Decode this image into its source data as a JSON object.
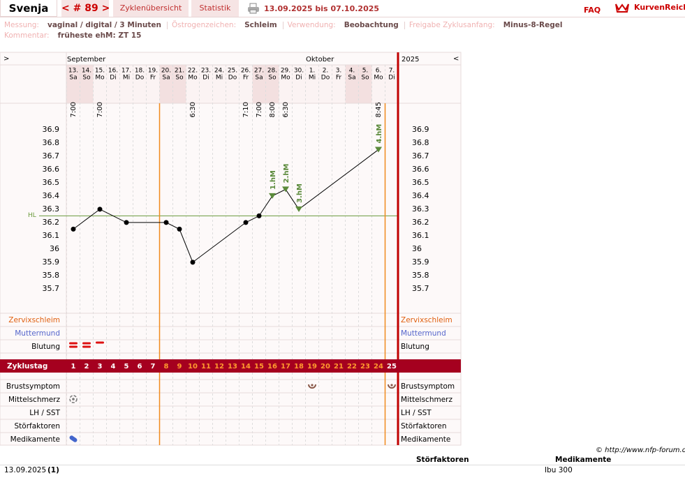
{
  "header": {
    "name": "Svenja",
    "cycle": "< # 89 >",
    "tabs": [
      "Zyklenübersicht",
      "Statistik"
    ],
    "period": "13.09.2025 bis 07.10.2025",
    "faq": "FAQ",
    "logo": "KurvenReich"
  },
  "info": [
    {
      "label": "Messung:",
      "value": "vaginal / digital / 3 Minuten"
    },
    {
      "label": "Östrogenzeichen:",
      "value": "Schleim"
    },
    {
      "label": "Verwendung:",
      "value": "Beobachtung"
    },
    {
      "label": "Freigabe Zyklusanfang:",
      "value": "Minus-8-Regel"
    }
  ],
  "comment": {
    "label": "Kommentar:",
    "value": "früheste ehM: ZT 15"
  },
  "chart_data": {
    "type": "line",
    "nav_left": ">",
    "nav_right": "<",
    "months": [
      "September",
      "Oktober"
    ],
    "year": "2025",
    "dates": [
      "13.",
      "14.",
      "15.",
      "16.",
      "17.",
      "18.",
      "19.",
      "20.",
      "21.",
      "22.",
      "23.",
      "24.",
      "25.",
      "26.",
      "27.",
      "28.",
      "29.",
      "30.",
      "1.",
      "2.",
      "3.",
      "4.",
      "5.",
      "6.",
      "7."
    ],
    "weekdays": [
      "Sa",
      "So",
      "Mo",
      "Di",
      "Mi",
      "Do",
      "Fr",
      "Sa",
      "So",
      "Mo",
      "Di",
      "Mi",
      "Do",
      "Fr",
      "Sa",
      "So",
      "Mo",
      "Di",
      "Mi",
      "Do",
      "Fr",
      "Sa",
      "So",
      "Mo",
      "Di"
    ],
    "times": [
      "7:00",
      null,
      "7:00",
      null,
      null,
      null,
      null,
      null,
      null,
      "6:30",
      null,
      null,
      null,
      "7:10",
      "7:00",
      "8:00",
      "6:30",
      null,
      null,
      null,
      null,
      null,
      null,
      "8:45",
      null
    ],
    "cycle_days": [
      1,
      2,
      3,
      4,
      5,
      6,
      7,
      8,
      9,
      10,
      11,
      12,
      13,
      14,
      15,
      16,
      17,
      18,
      19,
      20,
      21,
      22,
      23,
      24,
      25
    ],
    "shaded_days": [
      1,
      2,
      8,
      9,
      15,
      16,
      22,
      23
    ],
    "x": [
      1,
      3,
      5,
      8,
      9,
      10,
      14,
      15,
      16,
      17,
      18,
      24
    ],
    "values": [
      36.15,
      36.3,
      36.2,
      36.2,
      36.15,
      35.9,
      36.2,
      36.25,
      36.4,
      36.45,
      36.3,
      36.75
    ],
    "color": "#000000",
    "ylim": [
      35.52,
      37.1
    ],
    "yticks": [
      35.7,
      35.8,
      35.9,
      36,
      36.1,
      36.2,
      36.3,
      36.4,
      36.5,
      36.6,
      36.7,
      36.8,
      36.9
    ],
    "coverline": {
      "label": "HL",
      "value": 36.25,
      "color": "#6a9a3c"
    },
    "annotations": [
      {
        "x": 16,
        "label": "1.hM"
      },
      {
        "x": 17,
        "label": "2.hM"
      },
      {
        "x": 18,
        "label": "3.hM"
      },
      {
        "x": 24,
        "label": "4.hM"
      }
    ],
    "annotation_color": "#5a8a3a",
    "fertile_window": [
      8,
      24
    ],
    "rows_top": [
      "Zervixschleim",
      "Muttermund",
      "Blutung"
    ],
    "row_cycle": "Zyklustag",
    "rows_bottom": [
      "Brustsymptom",
      "Mittelschmerz",
      "LH / SST",
      "Störfaktoren",
      "Medikamente"
    ],
    "bleeding_days": [
      1,
      2,
      3
    ],
    "bleeding_strength": [
      2,
      2,
      1
    ],
    "breast_days": [
      19,
      25
    ],
    "pain_days": [
      1
    ],
    "medication_days": [
      1
    ]
  },
  "footer": {
    "copyright": "© http://www.nfp-forum.de",
    "columns": [
      "Störfaktoren",
      "Medikamente"
    ],
    "date": "13.09.2025",
    "count": "(1)",
    "medication": "Ibu 300"
  }
}
